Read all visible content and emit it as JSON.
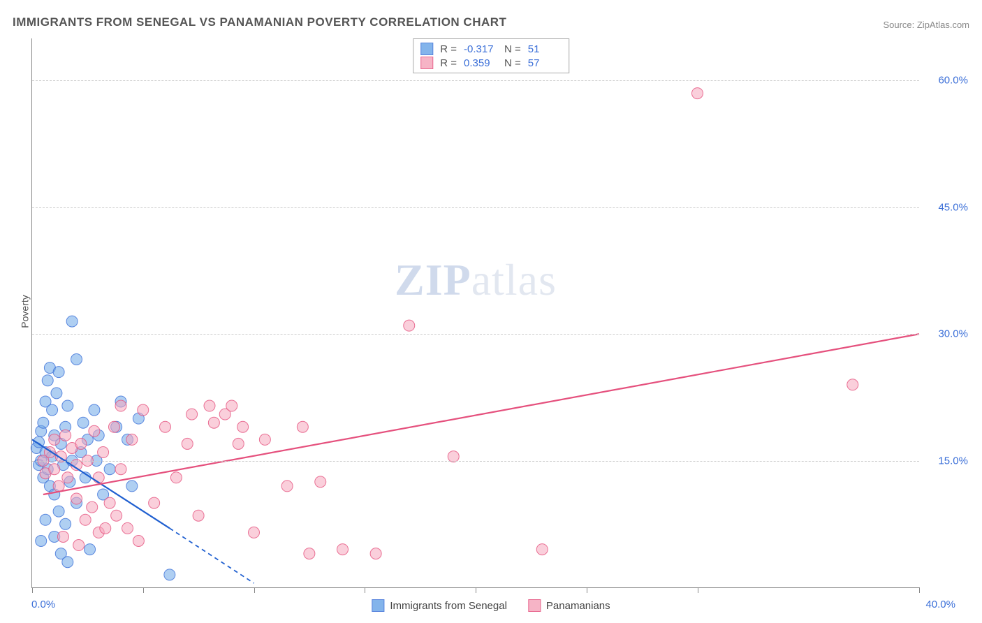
{
  "title": "IMMIGRANTS FROM SENEGAL VS PANAMANIAN POVERTY CORRELATION CHART",
  "source": "Source: ZipAtlas.com",
  "watermark": {
    "bold": "ZIP",
    "rest": "atlas"
  },
  "y_axis_title": "Poverty",
  "chart": {
    "type": "scatter",
    "xlim": [
      0,
      40
    ],
    "ylim": [
      0,
      65
    ],
    "x_min_label": "0.0%",
    "x_max_label": "40.0%",
    "y_ticks": [
      15,
      30,
      45,
      60
    ],
    "y_tick_labels": [
      "15.0%",
      "30.0%",
      "45.0%",
      "60.0%"
    ],
    "x_tick_positions": [
      0,
      5,
      10,
      15,
      20,
      25,
      30,
      40
    ],
    "background_color": "#ffffff",
    "grid_color": "#cccccc",
    "axis_color": "#888888",
    "marker_radius": 8,
    "marker_opacity": 0.55,
    "trend_line_width": 2.2
  },
  "series": [
    {
      "id": "senegal",
      "label": "Immigrants from Senegal",
      "fill_color": "#6ea8e8",
      "stroke_color": "#3b6fd8",
      "r_value": "-0.317",
      "n_value": "51",
      "trend_color": "#1f5fd0",
      "trend_start": [
        0,
        17.5
      ],
      "trend_end_solid": [
        6.2,
        7.0
      ],
      "trend_end_dashed": [
        10.0,
        0.5
      ],
      "points": [
        [
          0.2,
          16.5
        ],
        [
          0.3,
          14.5
        ],
        [
          0.3,
          17.2
        ],
        [
          0.4,
          18.5
        ],
        [
          0.4,
          15.0
        ],
        [
          0.5,
          19.5
        ],
        [
          0.5,
          13.0
        ],
        [
          0.6,
          22.0
        ],
        [
          0.6,
          16.0
        ],
        [
          0.7,
          24.5
        ],
        [
          0.7,
          14.0
        ],
        [
          0.8,
          26.0
        ],
        [
          0.8,
          12.0
        ],
        [
          0.9,
          21.0
        ],
        [
          0.9,
          15.5
        ],
        [
          1.0,
          18.0
        ],
        [
          1.0,
          11.0
        ],
        [
          1.1,
          23.0
        ],
        [
          1.2,
          25.5
        ],
        [
          1.2,
          9.0
        ],
        [
          1.3,
          17.0
        ],
        [
          1.4,
          14.5
        ],
        [
          1.5,
          19.0
        ],
        [
          1.5,
          7.5
        ],
        [
          1.6,
          21.5
        ],
        [
          1.7,
          12.5
        ],
        [
          1.8,
          15.0
        ],
        [
          1.8,
          31.5
        ],
        [
          2.0,
          27.0
        ],
        [
          2.0,
          10.0
        ],
        [
          2.2,
          16.0
        ],
        [
          2.3,
          19.5
        ],
        [
          2.4,
          13.0
        ],
        [
          2.5,
          17.5
        ],
        [
          2.6,
          4.5
        ],
        [
          2.8,
          21.0
        ],
        [
          2.9,
          15.0
        ],
        [
          3.0,
          18.0
        ],
        [
          3.2,
          11.0
        ],
        [
          3.5,
          14.0
        ],
        [
          3.8,
          19.0
        ],
        [
          4.0,
          22.0
        ],
        [
          4.3,
          17.5
        ],
        [
          4.5,
          12.0
        ],
        [
          4.8,
          20.0
        ],
        [
          0.4,
          5.5
        ],
        [
          0.6,
          8.0
        ],
        [
          1.0,
          6.0
        ],
        [
          1.3,
          4.0
        ],
        [
          6.2,
          1.5
        ],
        [
          1.6,
          3.0
        ]
      ]
    },
    {
      "id": "panamanians",
      "label": "Panamanians",
      "fill_color": "#f5a7bd",
      "stroke_color": "#e5507d",
      "r_value": "0.359",
      "n_value": "57",
      "trend_color": "#e5507d",
      "trend_start": [
        0.5,
        11.0
      ],
      "trend_end_solid": [
        40,
        30.0
      ],
      "trend_end_dashed": null,
      "points": [
        [
          0.5,
          15.0
        ],
        [
          0.6,
          13.5
        ],
        [
          0.8,
          16.0
        ],
        [
          1.0,
          14.0
        ],
        [
          1.0,
          17.5
        ],
        [
          1.2,
          12.0
        ],
        [
          1.3,
          15.5
        ],
        [
          1.5,
          18.0
        ],
        [
          1.6,
          13.0
        ],
        [
          1.8,
          16.5
        ],
        [
          2.0,
          10.5
        ],
        [
          2.0,
          14.5
        ],
        [
          2.2,
          17.0
        ],
        [
          2.4,
          8.0
        ],
        [
          2.5,
          15.0
        ],
        [
          2.7,
          9.5
        ],
        [
          2.8,
          18.5
        ],
        [
          3.0,
          6.5
        ],
        [
          3.0,
          13.0
        ],
        [
          3.2,
          16.0
        ],
        [
          3.3,
          7.0
        ],
        [
          3.5,
          10.0
        ],
        [
          3.7,
          19.0
        ],
        [
          3.8,
          8.5
        ],
        [
          4.0,
          21.5
        ],
        [
          4.0,
          14.0
        ],
        [
          4.3,
          7.0
        ],
        [
          4.5,
          17.5
        ],
        [
          4.8,
          5.5
        ],
        [
          5.0,
          21.0
        ],
        [
          5.5,
          10.0
        ],
        [
          6.0,
          19.0
        ],
        [
          6.5,
          13.0
        ],
        [
          7.0,
          17.0
        ],
        [
          7.2,
          20.5
        ],
        [
          7.5,
          8.5
        ],
        [
          8.0,
          21.5
        ],
        [
          8.2,
          19.5
        ],
        [
          8.7,
          20.5
        ],
        [
          9.0,
          21.5
        ],
        [
          9.3,
          17.0
        ],
        [
          9.5,
          19.0
        ],
        [
          10.0,
          6.5
        ],
        [
          10.5,
          17.5
        ],
        [
          11.5,
          12.0
        ],
        [
          12.2,
          19.0
        ],
        [
          12.5,
          4.0
        ],
        [
          13.0,
          12.5
        ],
        [
          14.0,
          4.5
        ],
        [
          15.5,
          4.0
        ],
        [
          17.0,
          31.0
        ],
        [
          19.0,
          15.5
        ],
        [
          23.0,
          4.5
        ],
        [
          30.0,
          58.5
        ],
        [
          37.0,
          24.0
        ],
        [
          1.4,
          6.0
        ],
        [
          2.1,
          5.0
        ]
      ]
    }
  ],
  "bottom_legend": [
    {
      "series": "senegal",
      "label": "Immigrants from Senegal"
    },
    {
      "series": "panamanians",
      "label": "Panamanians"
    }
  ]
}
